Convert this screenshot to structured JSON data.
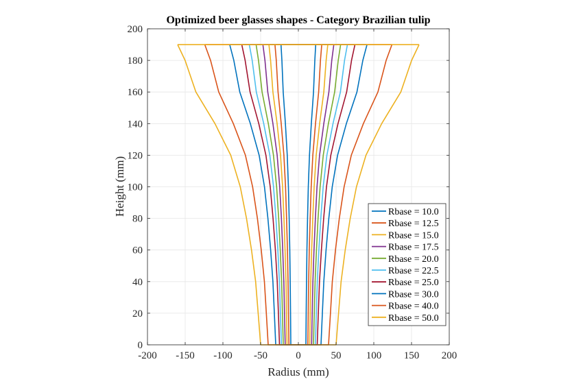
{
  "chart_data": {
    "type": "line",
    "title": "Optimized beer glasses shapes - Category Brazilian tulip",
    "xlabel": "Radius (mm)",
    "ylabel": "Height (mm)",
    "xlim": [
      -200,
      200
    ],
    "ylim": [
      0,
      200
    ],
    "xticks": [
      -200,
      -150,
      -100,
      -50,
      0,
      50,
      100,
      150,
      200
    ],
    "yticks": [
      0,
      20,
      40,
      60,
      80,
      100,
      120,
      140,
      160,
      180,
      200
    ],
    "grid": true,
    "legend_position": "bottom-right",
    "mirrored_about_zero": true,
    "heights": [
      0,
      20,
      40,
      60,
      80,
      100,
      120,
      140,
      160,
      180,
      190
    ],
    "series": [
      {
        "name": "Rbase = 10.0",
        "color": "#0072BD",
        "radius": [
          10,
          10.4,
          10.8,
          11.4,
          12.2,
          13.2,
          14.7,
          17.2,
          20.1,
          21.8,
          23
        ]
      },
      {
        "name": "Rbase = 12.5",
        "color": "#D95319",
        "radius": [
          12.5,
          13.1,
          13.6,
          14.5,
          15.6,
          17.0,
          19.2,
          22.7,
          26.9,
          29.3,
          31
        ]
      },
      {
        "name": "Rbase = 15.0",
        "color": "#EDB120",
        "radius": [
          15,
          15.7,
          16.4,
          17.6,
          19.1,
          20.9,
          23.6,
          28.2,
          33.7,
          36.8,
          39
        ]
      },
      {
        "name": "Rbase = 17.5",
        "color": "#7E2F8E",
        "radius": [
          17.5,
          18.4,
          19.3,
          20.7,
          22.5,
          24.7,
          28.1,
          33.7,
          40.5,
          44.3,
          47
        ]
      },
      {
        "name": "Rbase = 20.0",
        "color": "#77AC30",
        "radius": [
          20,
          21.1,
          22.2,
          24.0,
          26.1,
          28.8,
          33.0,
          39.8,
          48.1,
          52.8,
          56
        ]
      },
      {
        "name": "Rbase = 22.5",
        "color": "#4DBEEE",
        "radius": [
          22.5,
          23.8,
          25.1,
          27.2,
          29.7,
          32.9,
          37.8,
          45.9,
          55.7,
          61.2,
          65
        ]
      },
      {
        "name": "Rbase = 25.0",
        "color": "#A2142F",
        "radius": [
          25,
          26.5,
          28,
          30.5,
          33.5,
          37.3,
          43,
          52.5,
          64,
          70.5,
          75
        ]
      },
      {
        "name": "Rbase = 30.0",
        "color": "#0072BD",
        "radius": [
          30,
          31.8,
          33.7,
          36.7,
          40.4,
          44.9,
          52.0,
          63.6,
          77.6,
          85.5,
          91
        ]
      },
      {
        "name": "Rbase = 40.0",
        "color": "#D95319",
        "radius": [
          40,
          42.5,
          45.0,
          49.2,
          54.3,
          60.6,
          70.2,
          86.2,
          105.5,
          116.4,
          124
        ]
      },
      {
        "name": "Rbase = 50.0",
        "color": "#EDB120",
        "radius": [
          50,
          53.3,
          56.6,
          62.1,
          68.7,
          77.0,
          89.6,
          110.5,
          135.8,
          150.1,
          160
        ]
      }
    ]
  }
}
